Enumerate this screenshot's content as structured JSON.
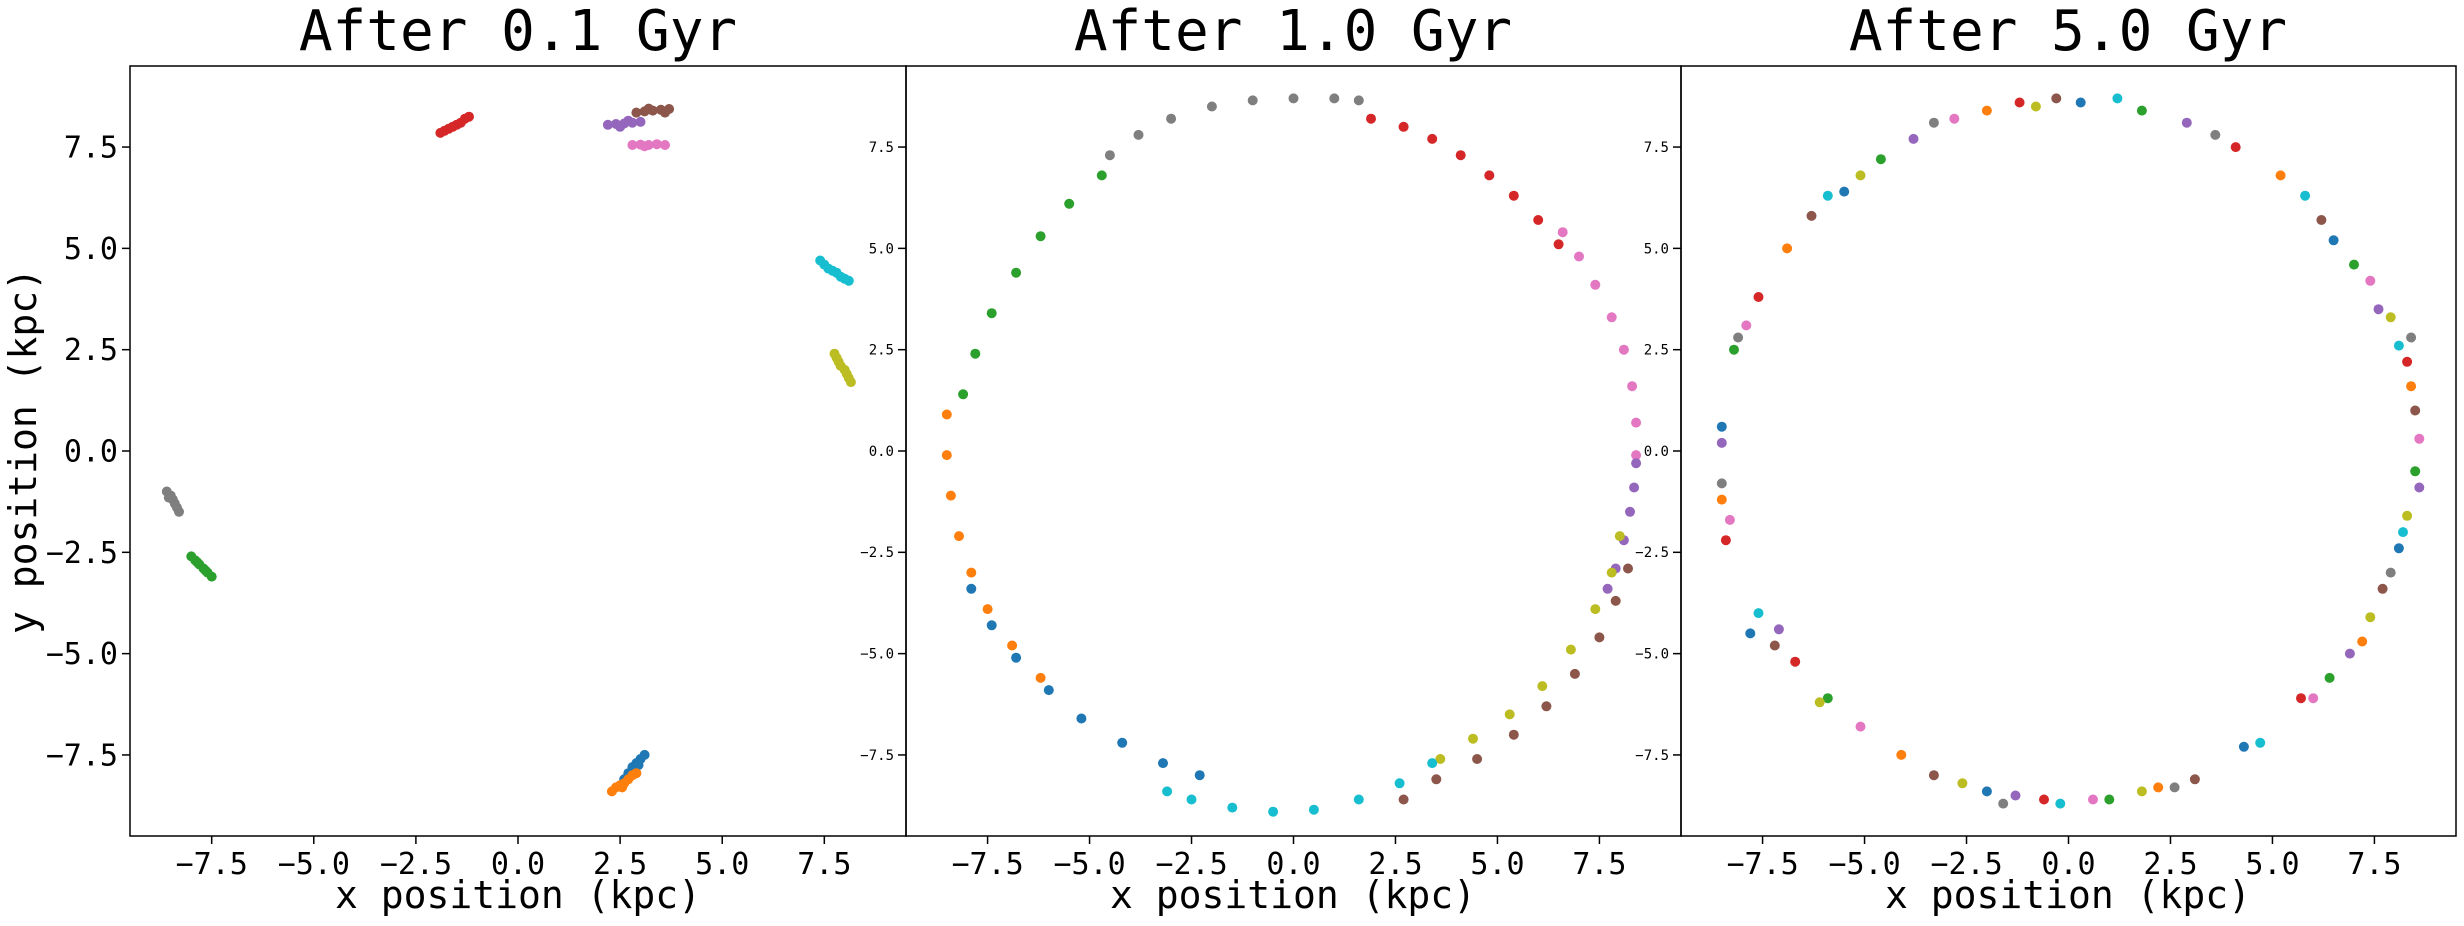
{
  "figure": {
    "ylabel": "y position (kpc)"
  },
  "chart_data": [
    {
      "type": "scatter",
      "title": "After 0.1 Gyr",
      "xlabel": "x position (kpc)",
      "xlim": [
        -9.5,
        9.5
      ],
      "ylim": [
        -9.5,
        9.5
      ],
      "xticks": [
        "−7.5",
        "−5.0",
        "−2.5",
        "0.0",
        "2.5",
        "5.0",
        "7.5"
      ],
      "yticks": [
        "−7.5",
        "−5.0",
        "−2.5",
        "0.0",
        "2.5",
        "5.0",
        "7.5"
      ],
      "grid": false,
      "series": [
        {
          "color": "#1f77b4",
          "points": [
            [
              2.6,
              -8.1
            ],
            [
              2.7,
              -7.95
            ],
            [
              2.8,
              -7.8
            ],
            [
              2.9,
              -7.7
            ],
            [
              3.0,
              -7.6
            ],
            [
              3.1,
              -7.5
            ],
            [
              2.75,
              -8.0
            ],
            [
              2.95,
              -7.75
            ]
          ]
        },
        {
          "color": "#ff7f0e",
          "points": [
            [
              2.3,
              -8.4
            ],
            [
              2.4,
              -8.3
            ],
            [
              2.5,
              -8.25
            ],
            [
              2.6,
              -8.2
            ],
            [
              2.7,
              -8.1
            ],
            [
              2.8,
              -8.0
            ],
            [
              2.9,
              -7.95
            ],
            [
              2.55,
              -8.3
            ]
          ]
        },
        {
          "color": "#2ca02c",
          "points": [
            [
              -8.0,
              -2.6
            ],
            [
              -7.9,
              -2.7
            ],
            [
              -7.8,
              -2.8
            ],
            [
              -7.7,
              -2.9
            ],
            [
              -7.6,
              -3.0
            ],
            [
              -7.5,
              -3.1
            ],
            [
              -7.85,
              -2.75
            ],
            [
              -7.65,
              -2.95
            ]
          ]
        },
        {
          "color": "#d62728",
          "points": [
            [
              -1.9,
              7.85
            ],
            [
              -1.8,
              7.9
            ],
            [
              -1.7,
              7.95
            ],
            [
              -1.6,
              8.0
            ],
            [
              -1.5,
              8.05
            ],
            [
              -1.4,
              8.1
            ],
            [
              -1.3,
              8.2
            ],
            [
              -1.2,
              8.25
            ]
          ]
        },
        {
          "color": "#9467bd",
          "points": [
            [
              2.2,
              8.05
            ],
            [
              2.4,
              8.07
            ],
            [
              2.6,
              8.08
            ],
            [
              2.8,
              8.1
            ],
            [
              3.0,
              8.12
            ],
            [
              2.5,
              8.0
            ],
            [
              2.7,
              8.15
            ]
          ]
        },
        {
          "color": "#8c564b",
          "points": [
            [
              2.9,
              8.35
            ],
            [
              3.1,
              8.38
            ],
            [
              3.3,
              8.4
            ],
            [
              3.5,
              8.42
            ],
            [
              3.7,
              8.44
            ],
            [
              3.2,
              8.45
            ],
            [
              3.6,
              8.35
            ]
          ]
        },
        {
          "color": "#e377c2",
          "points": [
            [
              2.8,
              7.55
            ],
            [
              3.0,
              7.56
            ],
            [
              3.2,
              7.55
            ],
            [
              3.4,
              7.57
            ],
            [
              3.6,
              7.55
            ],
            [
              3.1,
              7.52
            ]
          ]
        },
        {
          "color": "#7f7f7f",
          "points": [
            [
              -8.6,
              -1.0
            ],
            [
              -8.5,
              -1.1
            ],
            [
              -8.45,
              -1.2
            ],
            [
              -8.4,
              -1.3
            ],
            [
              -8.35,
              -1.4
            ],
            [
              -8.3,
              -1.5
            ],
            [
              -8.55,
              -1.15
            ]
          ]
        },
        {
          "color": "#bcbd22",
          "points": [
            [
              7.75,
              2.4
            ],
            [
              7.8,
              2.3
            ],
            [
              7.85,
              2.2
            ],
            [
              7.9,
              2.1
            ],
            [
              8.0,
              2.0
            ],
            [
              8.05,
              1.9
            ],
            [
              8.1,
              1.8
            ],
            [
              8.15,
              1.7
            ]
          ]
        },
        {
          "color": "#17becf",
          "points": [
            [
              7.4,
              4.7
            ],
            [
              7.5,
              4.6
            ],
            [
              7.6,
              4.5
            ],
            [
              7.7,
              4.45
            ],
            [
              7.8,
              4.4
            ],
            [
              7.9,
              4.3
            ],
            [
              8.0,
              4.25
            ],
            [
              8.1,
              4.2
            ]
          ]
        }
      ]
    },
    {
      "type": "scatter",
      "title": "After 1.0 Gyr",
      "xlabel": "x position (kpc)",
      "xlim": [
        -9.5,
        9.5
      ],
      "ylim": [
        -9.5,
        9.5
      ],
      "xticks": [
        "−7.5",
        "−5.0",
        "−2.5",
        "0.0",
        "2.5",
        "5.0",
        "7.5"
      ],
      "yticks": [
        "−7.5",
        "−5.0",
        "−2.5",
        "0.0",
        "2.5",
        "5.0",
        "7.5"
      ],
      "grid": false,
      "series": [
        {
          "color": "#7f7f7f",
          "points": [
            [
              -4.5,
              7.3
            ],
            [
              -3.8,
              7.8
            ],
            [
              -3.0,
              8.2
            ],
            [
              -2.0,
              8.5
            ],
            [
              -1.0,
              8.65
            ],
            [
              0.0,
              8.7
            ],
            [
              1.0,
              8.7
            ],
            [
              1.6,
              8.65
            ]
          ]
        },
        {
          "color": "#d62728",
          "points": [
            [
              1.9,
              8.2
            ],
            [
              2.7,
              8.0
            ],
            [
              3.4,
              7.7
            ],
            [
              4.1,
              7.3
            ],
            [
              4.8,
              6.8
            ],
            [
              5.4,
              6.3
            ],
            [
              6.0,
              5.7
            ],
            [
              6.5,
              5.1
            ]
          ]
        },
        {
          "color": "#e377c2",
          "points": [
            [
              6.6,
              5.4
            ],
            [
              7.0,
              4.8
            ],
            [
              7.4,
              4.1
            ],
            [
              7.8,
              3.3
            ],
            [
              8.1,
              2.5
            ],
            [
              8.3,
              1.6
            ],
            [
              8.4,
              0.7
            ],
            [
              8.4,
              -0.1
            ]
          ]
        },
        {
          "color": "#9467bd",
          "points": [
            [
              8.4,
              -0.3
            ],
            [
              8.35,
              -0.9
            ],
            [
              8.25,
              -1.5
            ],
            [
              8.1,
              -2.2
            ],
            [
              7.9,
              -2.9
            ],
            [
              7.7,
              -3.4
            ]
          ]
        },
        {
          "color": "#8c564b",
          "points": [
            [
              8.2,
              -2.9
            ],
            [
              7.9,
              -3.7
            ],
            [
              7.5,
              -4.6
            ],
            [
              6.9,
              -5.5
            ],
            [
              6.2,
              -6.3
            ],
            [
              5.4,
              -7.0
            ],
            [
              4.5,
              -7.6
            ],
            [
              3.5,
              -8.1
            ],
            [
              2.7,
              -8.6
            ]
          ]
        },
        {
          "color": "#bcbd22",
          "points": [
            [
              8.0,
              -2.1
            ],
            [
              7.8,
              -3.0
            ],
            [
              7.4,
              -3.9
            ],
            [
              6.8,
              -4.9
            ],
            [
              6.1,
              -5.8
            ],
            [
              5.3,
              -6.5
            ],
            [
              4.4,
              -7.1
            ],
            [
              3.6,
              -7.6
            ]
          ]
        },
        {
          "color": "#17becf",
          "points": [
            [
              3.4,
              -7.7
            ],
            [
              2.6,
              -8.2
            ],
            [
              1.6,
              -8.6
            ],
            [
              0.5,
              -8.85
            ],
            [
              -0.5,
              -8.9
            ],
            [
              -1.5,
              -8.8
            ],
            [
              -2.5,
              -8.6
            ],
            [
              -3.1,
              -8.4
            ]
          ]
        },
        {
          "color": "#1f77b4",
          "points": [
            [
              -2.3,
              -8.0
            ],
            [
              -3.2,
              -7.7
            ],
            [
              -4.2,
              -7.2
            ],
            [
              -5.2,
              -6.6
            ],
            [
              -6.0,
              -5.9
            ],
            [
              -6.8,
              -5.1
            ],
            [
              -7.4,
              -4.3
            ],
            [
              -7.9,
              -3.4
            ]
          ]
        },
        {
          "color": "#ff7f0e",
          "points": [
            [
              -6.2,
              -5.6
            ],
            [
              -6.9,
              -4.8
            ],
            [
              -7.5,
              -3.9
            ],
            [
              -7.9,
              -3.0
            ],
            [
              -8.2,
              -2.1
            ],
            [
              -8.4,
              -1.1
            ],
            [
              -8.5,
              -0.1
            ],
            [
              -8.5,
              0.9
            ]
          ]
        },
        {
          "color": "#2ca02c",
          "points": [
            [
              -8.1,
              1.4
            ],
            [
              -7.8,
              2.4
            ],
            [
              -7.4,
              3.4
            ],
            [
              -6.8,
              4.4
            ],
            [
              -6.2,
              5.3
            ],
            [
              -5.5,
              6.1
            ],
            [
              -4.7,
              6.8
            ]
          ]
        }
      ]
    },
    {
      "type": "scatter",
      "title": "After 5.0 Gyr",
      "xlabel": "x position (kpc)",
      "xlim": [
        -9.5,
        9.5
      ],
      "ylim": [
        -9.5,
        9.5
      ],
      "xticks": [
        "−7.5",
        "−5.0",
        "−2.5",
        "0.0",
        "2.5",
        "5.0",
        "7.5"
      ],
      "yticks": [
        "−7.5",
        "−5.0",
        "−2.5",
        "0.0",
        "2.5",
        "5.0",
        "7.5"
      ],
      "grid": false,
      "series": [
        {
          "color": "#1f77b4",
          "points": [
            [
              -7.8,
              -4.5
            ],
            [
              -2.0,
              -8.4
            ],
            [
              4.3,
              -7.3
            ],
            [
              8.1,
              -2.4
            ],
            [
              6.5,
              5.2
            ],
            [
              -8.5,
              0.6
            ],
            [
              0.3,
              8.6
            ],
            [
              -5.5,
              6.4
            ]
          ]
        },
        {
          "color": "#ff7f0e",
          "points": [
            [
              -8.5,
              -1.2
            ],
            [
              -4.1,
              -7.5
            ],
            [
              2.2,
              -8.3
            ],
            [
              7.2,
              -4.7
            ],
            [
              8.4,
              1.6
            ],
            [
              5.2,
              6.8
            ],
            [
              -2.0,
              8.4
            ],
            [
              -6.9,
              5.0
            ]
          ]
        },
        {
          "color": "#2ca02c",
          "points": [
            [
              -8.2,
              2.5
            ],
            [
              -5.9,
              -6.1
            ],
            [
              1.0,
              -8.6
            ],
            [
              6.4,
              -5.6
            ],
            [
              8.5,
              -0.5
            ],
            [
              7.0,
              4.6
            ],
            [
              1.8,
              8.4
            ],
            [
              -4.6,
              7.2
            ]
          ]
        },
        {
          "color": "#d62728",
          "points": [
            [
              -8.4,
              -2.2
            ],
            [
              -6.7,
              -5.2
            ],
            [
              -0.6,
              -8.6
            ],
            [
              5.7,
              -6.1
            ],
            [
              8.3,
              2.2
            ],
            [
              4.1,
              7.5
            ],
            [
              -1.2,
              8.6
            ],
            [
              -7.6,
              3.8
            ]
          ]
        },
        {
          "color": "#9467bd",
          "points": [
            [
              -8.5,
              0.2
            ],
            [
              -7.1,
              -4.4
            ],
            [
              -1.3,
              -8.5
            ],
            [
              6.9,
              -5.0
            ],
            [
              8.6,
              -0.9
            ],
            [
              7.6,
              3.5
            ],
            [
              2.9,
              8.1
            ],
            [
              -3.8,
              7.7
            ]
          ]
        },
        {
          "color": "#8c564b",
          "points": [
            [
              -7.2,
              -4.8
            ],
            [
              -3.3,
              -8.0
            ],
            [
              3.1,
              -8.1
            ],
            [
              7.7,
              -3.4
            ],
            [
              8.5,
              1.0
            ],
            [
              6.2,
              5.7
            ],
            [
              -0.3,
              8.7
            ],
            [
              -6.3,
              5.8
            ]
          ]
        },
        {
          "color": "#e377c2",
          "points": [
            [
              -8.3,
              -1.7
            ],
            [
              -5.1,
              -6.8
            ],
            [
              0.6,
              -8.6
            ],
            [
              6.0,
              -6.1
            ],
            [
              8.6,
              0.3
            ],
            [
              7.4,
              4.2
            ],
            [
              -2.8,
              8.2
            ],
            [
              -7.9,
              3.1
            ]
          ]
        },
        {
          "color": "#7f7f7f",
          "points": [
            [
              -8.1,
              2.8
            ],
            [
              -1.6,
              -8.7
            ],
            [
              2.6,
              -8.3
            ],
            [
              7.9,
              -3.0
            ],
            [
              8.4,
              2.8
            ],
            [
              3.6,
              7.8
            ],
            [
              -3.3,
              8.1
            ],
            [
              -8.5,
              -0.8
            ]
          ]
        },
        {
          "color": "#bcbd22",
          "points": [
            [
              -6.1,
              -6.2
            ],
            [
              -2.6,
              -8.2
            ],
            [
              1.8,
              -8.4
            ],
            [
              7.4,
              -4.1
            ],
            [
              8.3,
              -1.6
            ],
            [
              7.9,
              3.3
            ],
            [
              -0.8,
              8.5
            ],
            [
              -5.1,
              6.8
            ]
          ]
        },
        {
          "color": "#17becf",
          "points": [
            [
              -7.6,
              -4.0
            ],
            [
              -0.2,
              -8.7
            ],
            [
              4.7,
              -7.2
            ],
            [
              8.2,
              -2.0
            ],
            [
              8.1,
              2.6
            ],
            [
              5.8,
              6.3
            ],
            [
              1.2,
              8.7
            ],
            [
              -5.9,
              6.3
            ]
          ]
        }
      ]
    }
  ]
}
